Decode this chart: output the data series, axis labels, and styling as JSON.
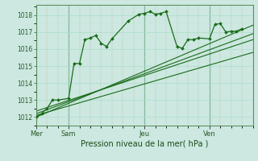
{
  "background_color": "#cce8e0",
  "grid_color": "#aaddcc",
  "line_color": "#1a6b1a",
  "title": "Pression niveau de la mer( hPa )",
  "ylim": [
    1011.5,
    1018.6
  ],
  "yticks": [
    1012,
    1013,
    1014,
    1015,
    1016,
    1017,
    1018
  ],
  "day_labels": [
    "Mer",
    "Sam",
    "Jeu",
    "Ven"
  ],
  "day_positions": [
    0,
    3,
    10,
    16
  ],
  "xlim": [
    0,
    20
  ],
  "line1_x": [
    0,
    0.5,
    1.0,
    1.5,
    2.0,
    3.0,
    3.5,
    4.0,
    4.5,
    5.0,
    5.5,
    6.0,
    6.5,
    7.0,
    8.5,
    9.5,
    10.0,
    10.5,
    11.0,
    11.5,
    12.0,
    13.0,
    13.5,
    14.0,
    14.5,
    15.0,
    16.0,
    16.5,
    17.0,
    17.5,
    18.0,
    18.5,
    19.0
  ],
  "line1_y": [
    1012.0,
    1012.2,
    1012.5,
    1013.0,
    1013.0,
    1013.1,
    1015.15,
    1015.15,
    1016.55,
    1016.65,
    1016.8,
    1016.35,
    1016.15,
    1016.6,
    1017.65,
    1018.05,
    1018.1,
    1018.2,
    1018.05,
    1018.1,
    1018.2,
    1016.15,
    1016.05,
    1016.55,
    1016.55,
    1016.65,
    1016.6,
    1017.45,
    1017.5,
    1017.0,
    1017.05,
    1017.05,
    1017.2
  ],
  "line2_x": [
    0,
    20
  ],
  "line2_y": [
    1012.0,
    1017.4
  ],
  "line3_x": [
    0,
    20
  ],
  "line3_y": [
    1012.2,
    1016.9
  ],
  "line4_x": [
    0,
    20
  ],
  "line4_y": [
    1012.35,
    1016.55
  ],
  "line5_x": [
    0,
    20
  ],
  "line5_y": [
    1012.1,
    1015.8
  ],
  "ytick_fontsize": 5.5,
  "xtick_fontsize": 6.0,
  "xlabel_fontsize": 7.0,
  "vline_color": "#336633",
  "minor_grid_color": "#bbddcc"
}
